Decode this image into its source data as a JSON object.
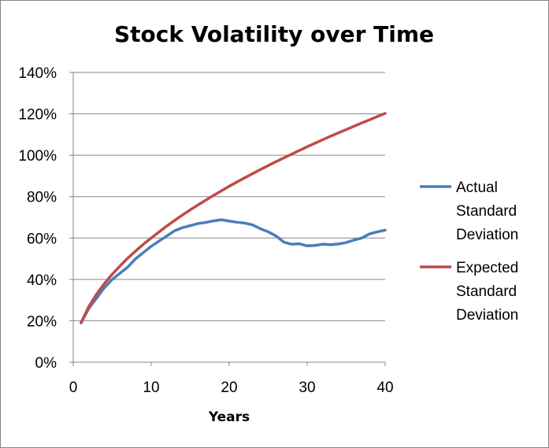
{
  "chart_data": {
    "type": "line",
    "title": "Stock Volatility over Time",
    "xlabel": "Years",
    "ylabel": "",
    "xlim": [
      0,
      40
    ],
    "ylim": [
      0,
      140
    ],
    "x_ticks": [
      0,
      10,
      20,
      30,
      40
    ],
    "x_tick_labels": [
      "0",
      "10",
      "20",
      "30",
      "40"
    ],
    "y_ticks": [
      0,
      20,
      40,
      60,
      80,
      100,
      120,
      140
    ],
    "y_tick_labels": [
      "0%",
      "20%",
      "40%",
      "60%",
      "80%",
      "100%",
      "120%",
      "140%"
    ],
    "grid": "horizontal",
    "legend_position": "right",
    "x": [
      1,
      2,
      3,
      4,
      5,
      6,
      7,
      8,
      9,
      10,
      11,
      12,
      13,
      14,
      15,
      16,
      17,
      18,
      19,
      20,
      21,
      22,
      23,
      24,
      25,
      26,
      27,
      28,
      29,
      30,
      31,
      32,
      33,
      34,
      35,
      36,
      37,
      38,
      39,
      40
    ],
    "series": [
      {
        "name": "Actual Standard Deviation",
        "legend_lines": [
          "Actual",
          "Standard",
          "Deviation"
        ],
        "color": "#4a7ebb",
        "values": [
          19,
          26,
          31,
          36,
          40,
          43,
          46,
          50,
          53,
          56,
          58.5,
          61,
          63.5,
          65,
          66,
          67,
          67.5,
          68.3,
          68.8,
          68.2,
          67.6,
          67.2,
          66.3,
          64.5,
          63,
          61,
          58,
          57,
          57.2,
          56.2,
          56.4,
          57,
          56.8,
          57.1,
          57.8,
          59,
          60,
          62,
          63,
          63.8
        ]
      },
      {
        "name": "Expected Standard Deviation",
        "legend_lines": [
          "Expected",
          "Standard",
          "Deviation"
        ],
        "color": "#be4b48",
        "values": [
          19,
          26.9,
          32.9,
          38,
          42.5,
          46.5,
          50.3,
          53.7,
          57,
          60,
          62.9,
          65.8,
          68.5,
          71.1,
          73.6,
          76,
          78.3,
          80.6,
          82.8,
          85,
          87.1,
          89.1,
          91.1,
          93.1,
          95,
          96.9,
          98.7,
          100.5,
          102.3,
          104.1,
          105.8,
          107.5,
          109.2,
          110.8,
          112.4,
          114,
          115.6,
          117.1,
          118.7,
          120.2
        ]
      }
    ]
  }
}
